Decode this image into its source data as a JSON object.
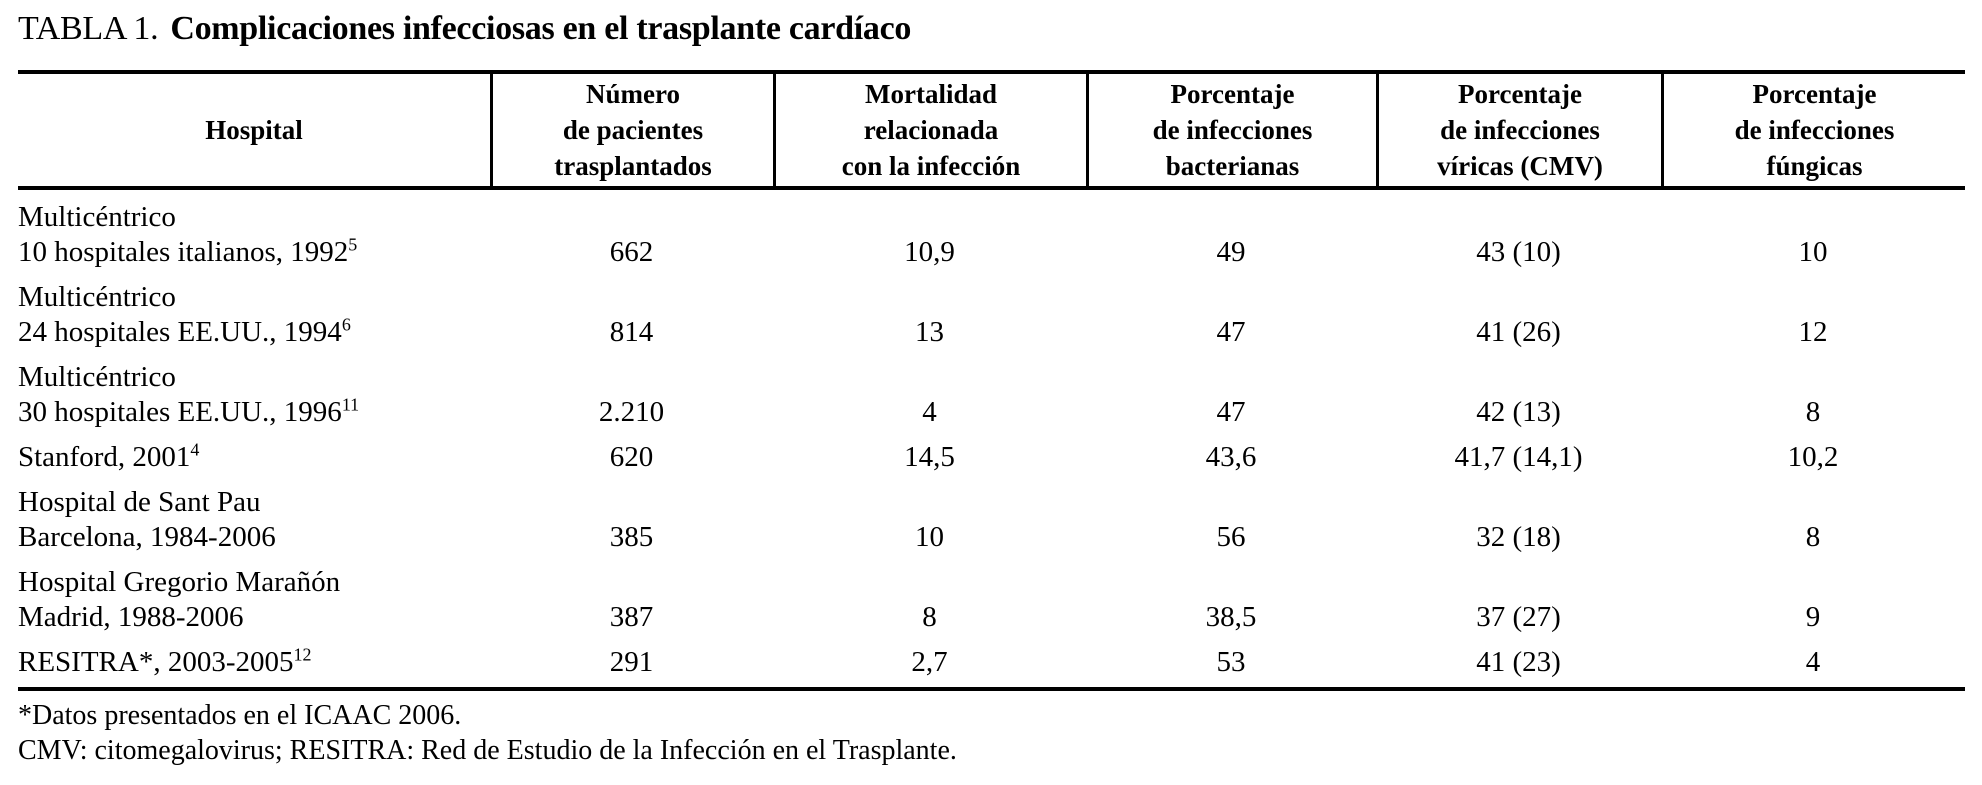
{
  "title": {
    "label": "TABLA 1.",
    "text": "Complicaciones infecciosas en el trasplante cardíaco"
  },
  "table": {
    "columns": [
      {
        "lines": [
          "Hospital"
        ]
      },
      {
        "lines": [
          "Número",
          "de pacientes",
          "trasplantados"
        ]
      },
      {
        "lines": [
          "Mortalidad",
          "relacionada",
          "con la infección"
        ]
      },
      {
        "lines": [
          "Porcentaje",
          "de infecciones",
          "bacterianas"
        ]
      },
      {
        "lines": [
          "Porcentaje",
          "de infecciones",
          "víricas (CMV)"
        ]
      },
      {
        "lines": [
          "Porcentaje",
          "de infecciones",
          "fúngicas"
        ]
      }
    ],
    "rows": [
      {
        "line1": "Multicéntrico",
        "line2": "10 hospitales italianos, 1992",
        "sup": "5",
        "values": [
          "662",
          "10,9",
          "49",
          "43 (10)",
          "10"
        ]
      },
      {
        "line1": "Multicéntrico",
        "line2": "24 hospitales EE.UU., 1994",
        "sup": "6",
        "values": [
          "814",
          "13",
          "47",
          "41 (26)",
          "12"
        ]
      },
      {
        "line1": "Multicéntrico",
        "line2": "30 hospitales EE.UU., 1996",
        "sup": "11",
        "values": [
          "2.210",
          "4",
          "47",
          "42 (13)",
          "8"
        ]
      },
      {
        "line1": "",
        "line2": "Stanford, 2001",
        "sup": "4",
        "values": [
          "620",
          "14,5",
          "43,6",
          "41,7 (14,1)",
          "10,2"
        ]
      },
      {
        "line1": "Hospital de Sant Pau",
        "line2": "Barcelona, 1984-2006",
        "sup": "",
        "values": [
          "385",
          "10",
          "56",
          "32 (18)",
          "8"
        ]
      },
      {
        "line1": "Hospital Gregorio Marañón",
        "line2": "Madrid, 1988-2006",
        "sup": "",
        "values": [
          "387",
          "8",
          "38,5",
          "37 (27)",
          "9"
        ]
      },
      {
        "line1": "",
        "line2": "RESITRA*, 2003-2005",
        "sup": "12",
        "values": [
          "291",
          "2,7",
          "53",
          "41 (23)",
          "4"
        ]
      }
    ]
  },
  "footnotes": [
    "*Datos presentados en el ICAAC 2006.",
    "CMV: citomegalovirus; RESITRA: Red de Estudio de la Infección en el Trasplante."
  ]
}
